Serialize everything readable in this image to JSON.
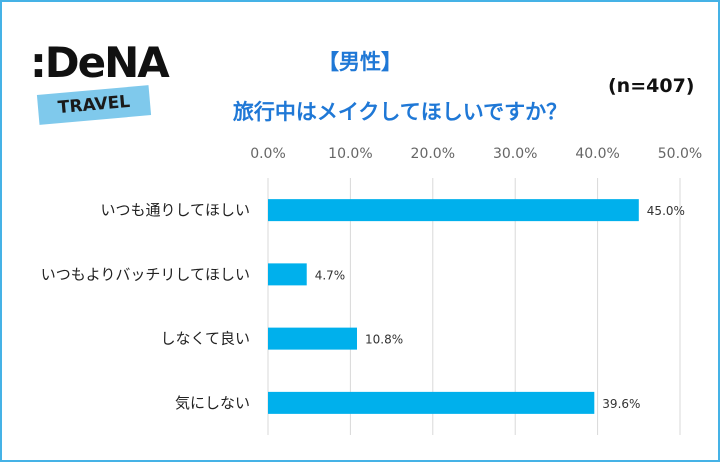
{
  "logo": {
    "brand": ":DeNA",
    "tag": "TRAVEL"
  },
  "colors": {
    "bar": "#00b0ec",
    "title": "#1f78d6",
    "border": "#45b2e6",
    "grid": "#d9d9d9"
  },
  "chart_data": {
    "type": "bar",
    "orientation": "horizontal",
    "title": "【男性】",
    "subtitle": "旅行中はメイクしてほしいですか？",
    "note": "(n=407)",
    "categories": [
      "いつも通りしてほしい",
      "いつもよりバッチリしてほしい",
      "しなくて良い",
      "気にしない"
    ],
    "values": [
      45.0,
      4.7,
      10.8,
      39.6
    ],
    "value_labels": [
      "45.0%",
      "4.7%",
      "10.8%",
      "39.6%"
    ],
    "xlim": [
      0,
      50
    ],
    "ticks": [
      0,
      10,
      20,
      30,
      40,
      50
    ],
    "tick_labels": [
      "0.0%",
      "10.0%",
      "20.0%",
      "30.0%",
      "40.0%",
      "50.0%"
    ],
    "axis_position": "top",
    "grid": true,
    "legend": "none"
  }
}
